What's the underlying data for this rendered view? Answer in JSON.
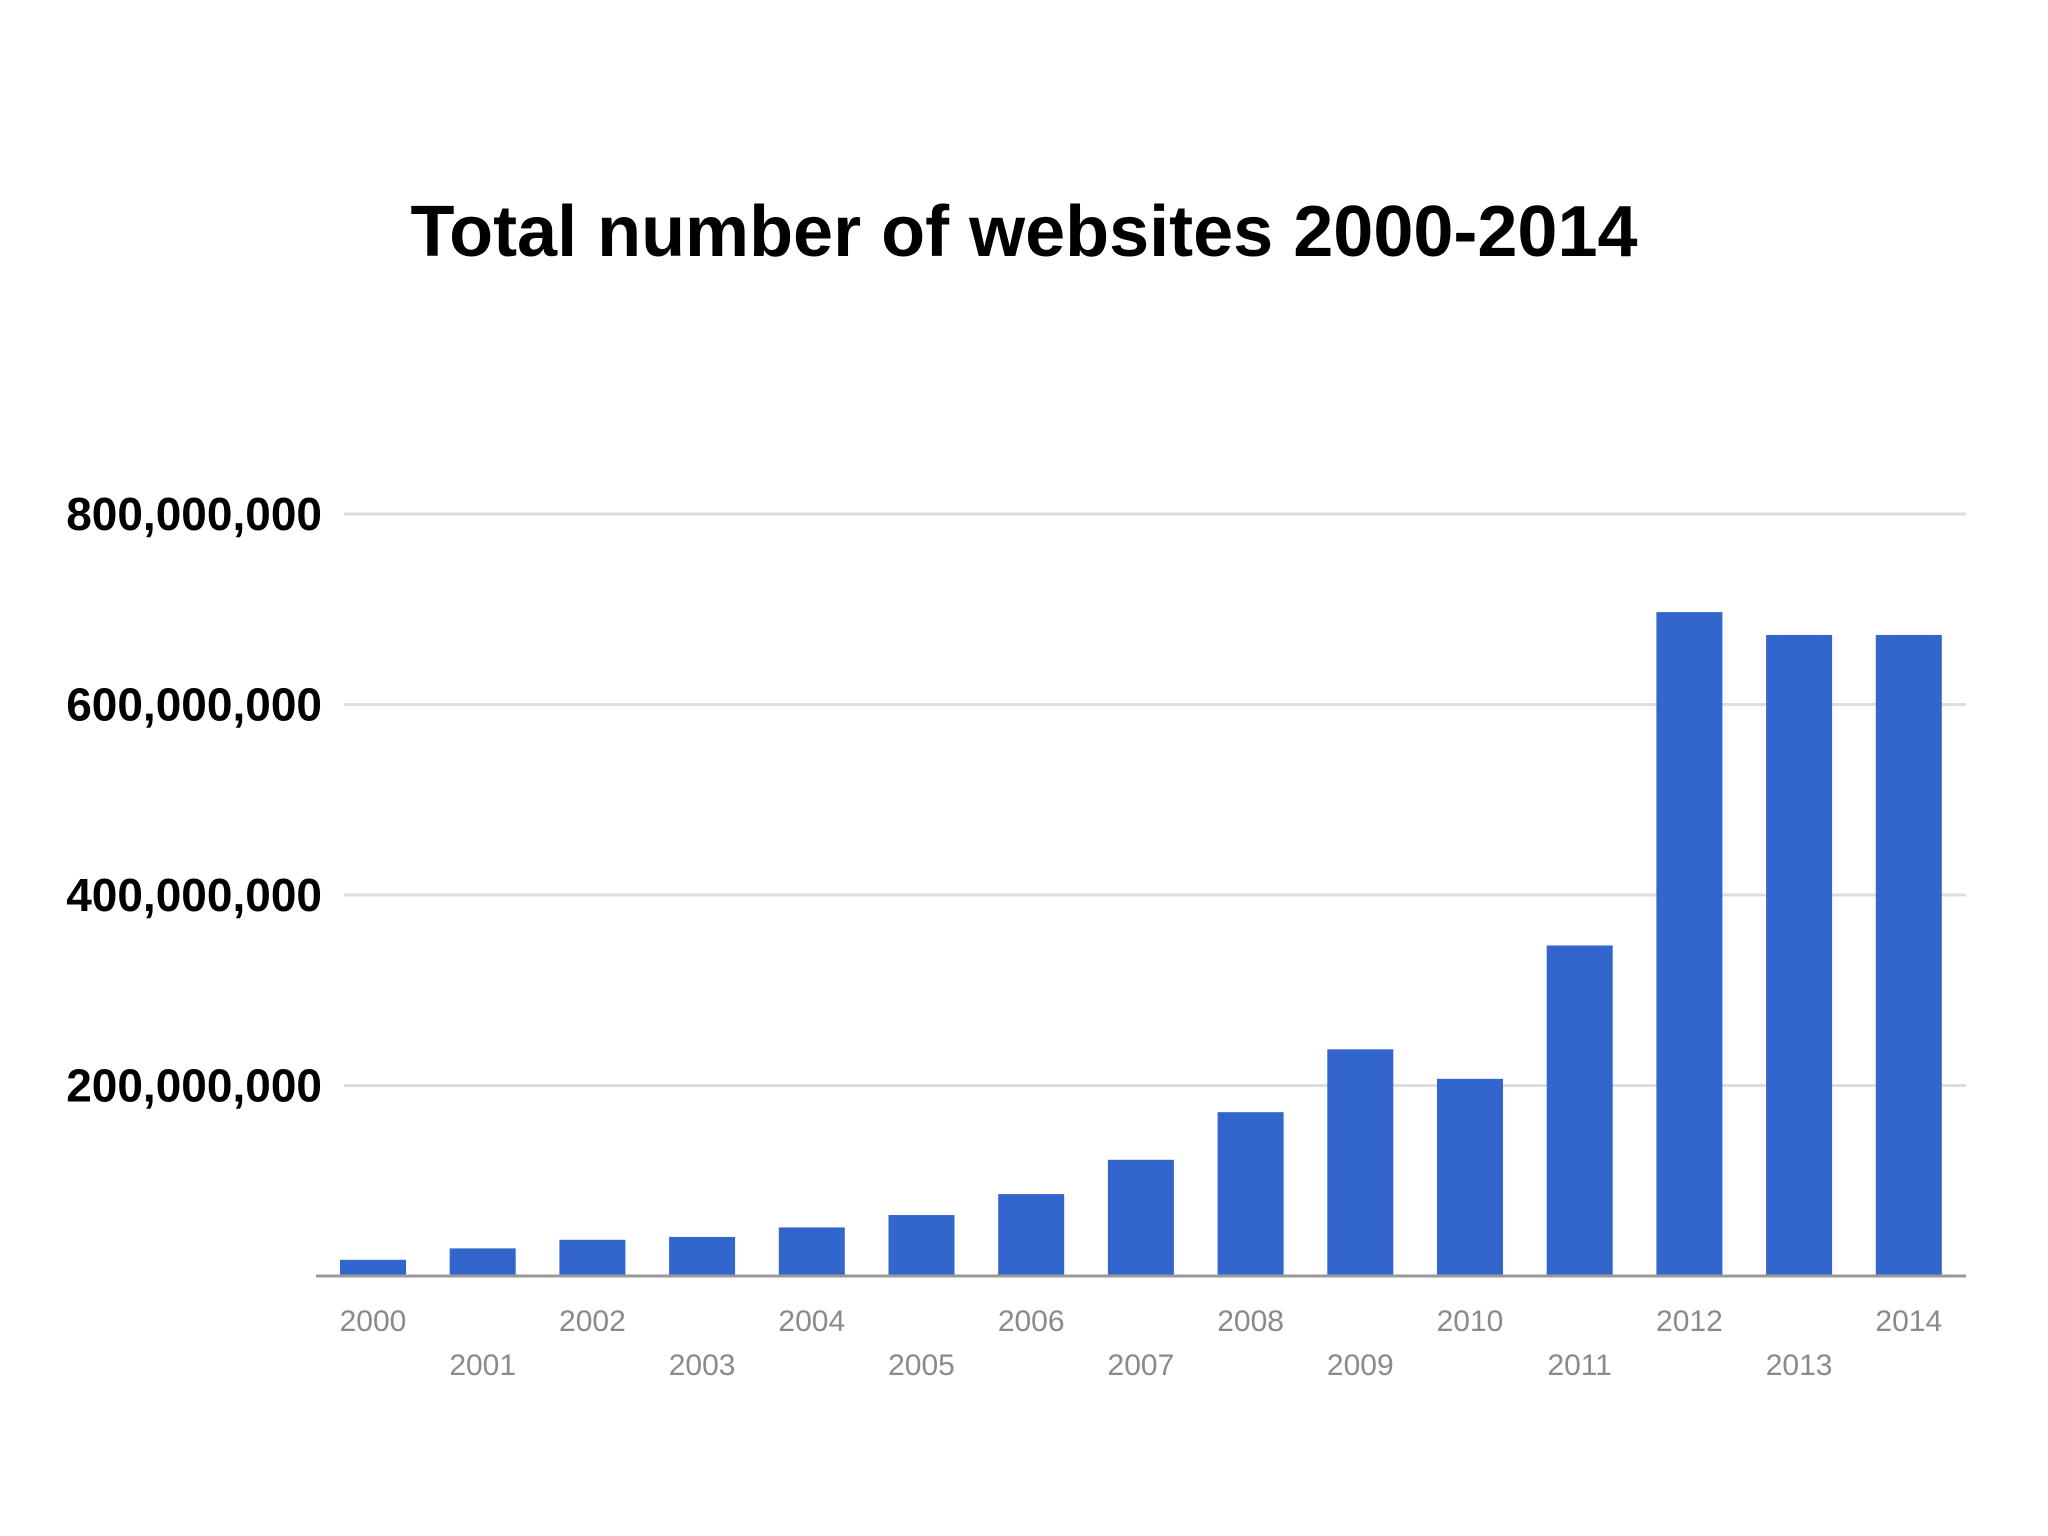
{
  "chart_data": {
    "type": "bar",
    "title": "Total number of websites 2000-2014",
    "categories": [
      "2000",
      "2001",
      "2002",
      "2003",
      "2004",
      "2005",
      "2006",
      "2007",
      "2008",
      "2009",
      "2010",
      "2011",
      "2012",
      "2013",
      "2014"
    ],
    "values": [
      17000000,
      29000000,
      38000000,
      41000000,
      51000000,
      64000000,
      86000000,
      122000000,
      172000000,
      238000000,
      207000000,
      347000000,
      697000000,
      673000000,
      673000000
    ],
    "ylim": [
      0,
      800000000
    ],
    "yticks": [
      {
        "value": 200000000,
        "label": "200,000,000"
      },
      {
        "value": 400000000,
        "label": "400,000,000"
      },
      {
        "value": 600000000,
        "label": "600,000,000"
      },
      {
        "value": 800000000,
        "label": "800,000,000"
      }
    ],
    "xlabel": "",
    "ylabel": "",
    "grid": true,
    "bar_color": "#3366cc",
    "grid_color": "#dddddd",
    "axis_color": "#999999"
  }
}
